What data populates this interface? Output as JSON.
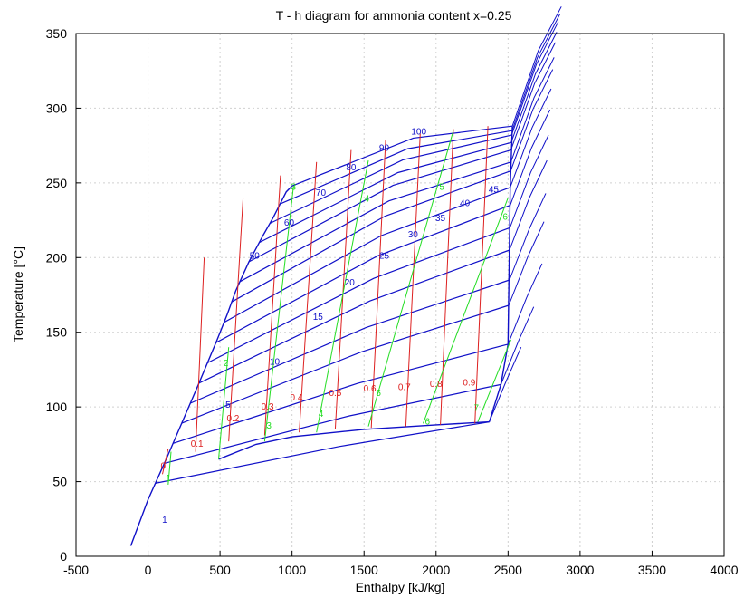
{
  "chart_data": {
    "type": "line",
    "title": "T - h diagram for ammonia content x=0.25",
    "xlabel": "Enthalpy [kJ/kg]",
    "ylabel": "Temperature [°C]",
    "xlim": [
      -500,
      4000
    ],
    "ylim": [
      0,
      350
    ],
    "grid": true,
    "xticks": [
      -500,
      0,
      500,
      1000,
      1500,
      2000,
      2500,
      3000,
      3500,
      4000
    ],
    "yticks": [
      0,
      50,
      100,
      150,
      200,
      250,
      300,
      350
    ],
    "colors": {
      "isobar": "#1010c8",
      "vapor_quality": "#dd2020",
      "ammonia_content": "#22dd22",
      "grid": "#d0d0d0",
      "text": "#000000"
    },
    "isobars": {
      "pressures": [
        1,
        5,
        10,
        15,
        20,
        25,
        30,
        35,
        40,
        45,
        50,
        60,
        70,
        80,
        90,
        100
      ],
      "bubble_points": [
        {
          "h": 0,
          "T": 38
        },
        {
          "h": 490,
          "T": 65
        },
        {
          "h": 750,
          "T": 75
        },
        {
          "h": 1000,
          "T": 80
        },
        {
          "h": 1500,
          "T": 85
        },
        {
          "h": 2000,
          "T": 88
        },
        {
          "h": 2370,
          "T": 90
        }
      ],
      "dew_points": [
        {
          "h": 2370,
          "T": 90
        },
        {
          "h": 2450,
          "T": 115
        },
        {
          "h": 2500,
          "T": 142
        },
        {
          "h": 2505,
          "T": 168
        },
        {
          "h": 2510,
          "T": 185
        },
        {
          "h": 2510,
          "T": 205
        },
        {
          "h": 2513,
          "T": 220
        },
        {
          "h": 2515,
          "T": 235
        },
        {
          "h": 2515,
          "T": 247
        },
        {
          "h": 2518,
          "T": 258
        },
        {
          "h": 2520,
          "T": 264
        },
        {
          "h": 2520,
          "T": 272
        },
        {
          "h": 2522,
          "T": 277
        },
        {
          "h": 2525,
          "T": 282
        },
        {
          "h": 2528,
          "T": 285
        },
        {
          "h": 2530,
          "T": 288
        }
      ],
      "bubble_lines": [
        [
          {
            "h": -120,
            "T": 7
          },
          {
            "h": 0,
            "T": 38
          },
          {
            "h": 140,
            "T": 68
          },
          {
            "h": 350,
            "T": 115
          },
          {
            "h": 480,
            "T": 145
          },
          {
            "h": 550,
            "T": 162
          },
          {
            "h": 610,
            "T": 178
          },
          {
            "h": 700,
            "T": 197
          },
          {
            "h": 800,
            "T": 215
          },
          {
            "h": 870,
            "T": 227
          },
          {
            "h": 960,
            "T": 244
          },
          {
            "h": 1000,
            "T": 248
          }
        ]
      ],
      "label_positions": [
        {
          "label": "1",
          "h": 115,
          "T": 24
        },
        {
          "label": "5",
          "h": 555,
          "T": 101
        },
        {
          "label": "10",
          "h": 880,
          "T": 130
        },
        {
          "label": "15",
          "h": 1180,
          "T": 160
        },
        {
          "label": "20",
          "h": 1400,
          "T": 183
        },
        {
          "label": "25",
          "h": 1640,
          "T": 201
        },
        {
          "label": "30",
          "h": 1840,
          "T": 215
        },
        {
          "label": "35",
          "h": 2030,
          "T": 226
        },
        {
          "label": "40",
          "h": 2200,
          "T": 236
        },
        {
          "label": "45",
          "h": 2400,
          "T": 245
        },
        {
          "label": "50",
          "h": 740,
          "T": 201
        },
        {
          "label": "60",
          "h": 980,
          "T": 223
        },
        {
          "label": "70",
          "h": 1200,
          "T": 243
        },
        {
          "label": "80",
          "h": 1410,
          "T": 260
        },
        {
          "label": "90",
          "h": 1640,
          "T": 273
        },
        {
          "label": "100",
          "h": 1880,
          "T": 284
        }
      ]
    },
    "vapor_quality_lines": {
      "values": [
        "0",
        "0.1",
        "0.2",
        "0.3",
        "0.4",
        "0.5",
        "0.6",
        "0.7",
        "0.8",
        "0.9"
      ],
      "label_positions": [
        {
          "label": "0",
          "h": 105,
          "T": 60
        },
        {
          "label": "0.1",
          "h": 340,
          "T": 75
        },
        {
          "label": "0.2",
          "h": 590,
          "T": 92
        },
        {
          "label": "0.3",
          "h": 830,
          "T": 100
        },
        {
          "label": "0.4",
          "h": 1030,
          "T": 106
        },
        {
          "label": "0.5",
          "h": 1300,
          "T": 109
        },
        {
          "label": "0.6",
          "h": 1540,
          "T": 112
        },
        {
          "label": "0.7",
          "h": 1780,
          "T": 113
        },
        {
          "label": "0.8",
          "h": 2000,
          "T": 115
        },
        {
          "label": "0.9",
          "h": 2230,
          "T": 116
        }
      ]
    },
    "ammonia_content_lines": {
      "values": [
        "1",
        "2",
        "3",
        "4",
        "5",
        "6",
        "7"
      ],
      "label_positions": [
        {
          "label": "1",
          "h": 140,
          "T": 52
        },
        {
          "label": "2",
          "h": 540,
          "T": 129
        },
        {
          "label": "3",
          "h": 840,
          "T": 87
        },
        {
          "label": "4",
          "h": 1200,
          "T": 95
        },
        {
          "label": "5",
          "h": 1600,
          "T": 109
        },
        {
          "label": "6",
          "h": 1940,
          "T": 90
        },
        {
          "label": "7",
          "h": 2280,
          "T": 99
        },
        {
          "label": "3",
          "h": 1010,
          "T": 247
        },
        {
          "label": "4",
          "h": 1520,
          "T": 239
        },
        {
          "label": "5",
          "h": 2040,
          "T": 247
        },
        {
          "label": "6",
          "h": 2480,
          "T": 227
        }
      ]
    }
  }
}
